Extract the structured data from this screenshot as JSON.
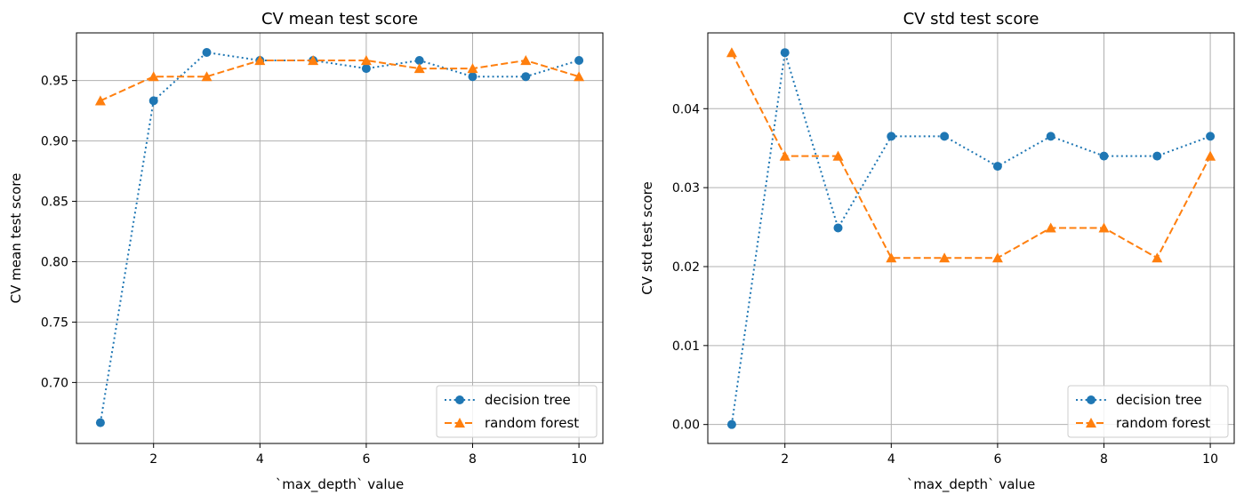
{
  "chart_data": [
    {
      "type": "line",
      "title": "CV mean test score",
      "xlabel": "`max_depth` value",
      "ylabel": "CV mean test score",
      "xlim": [
        0.55,
        10.45
      ],
      "ylim": [
        0.6495,
        0.9895
      ],
      "xticks": [
        2,
        4,
        6,
        8,
        10
      ],
      "yticks": [
        0.7,
        0.75,
        0.8,
        0.85,
        0.9,
        0.95
      ],
      "ytick_labels": [
        "0.70",
        "0.75",
        "0.80",
        "0.85",
        "0.90",
        "0.95"
      ],
      "xtick_labels": [
        "2",
        "4",
        "6",
        "8",
        "10"
      ],
      "grid": true,
      "legend": "lower right",
      "x": [
        1,
        2,
        3,
        4,
        5,
        6,
        7,
        8,
        9,
        10
      ],
      "series": [
        {
          "name": "decision tree",
          "color": "#1f77b4",
          "marker": "circle",
          "linestyle": "dotted",
          "values": [
            0.6667,
            0.9333,
            0.9733,
            0.9667,
            0.9667,
            0.96,
            0.9667,
            0.9533,
            0.9533,
            0.9667
          ]
        },
        {
          "name": "random forest",
          "color": "#ff7f0e",
          "marker": "triangle",
          "linestyle": "dashed",
          "values": [
            0.9333,
            0.9533,
            0.9533,
            0.9667,
            0.9667,
            0.9667,
            0.96,
            0.96,
            0.9667,
            0.9533
          ]
        }
      ]
    },
    {
      "type": "line",
      "title": "CV std test score",
      "xlabel": "`max_depth` value",
      "ylabel": "CV std test score",
      "xlim": [
        0.55,
        10.45
      ],
      "ylim": [
        -0.0024,
        0.0496
      ],
      "xticks": [
        2,
        4,
        6,
        8,
        10
      ],
      "yticks": [
        0.0,
        0.01,
        0.02,
        0.03,
        0.04
      ],
      "ytick_labels": [
        "0.00",
        "0.01",
        "0.02",
        "0.03",
        "0.04"
      ],
      "xtick_labels": [
        "2",
        "4",
        "6",
        "8",
        "10"
      ],
      "grid": true,
      "legend": "lower right",
      "x": [
        1,
        2,
        3,
        4,
        5,
        6,
        7,
        8,
        9,
        10
      ],
      "series": [
        {
          "name": "decision tree",
          "color": "#1f77b4",
          "marker": "circle",
          "linestyle": "dotted",
          "values": [
            0.0,
            0.0471,
            0.0249,
            0.0365,
            0.0365,
            0.0327,
            0.0365,
            0.034,
            0.034,
            0.0365
          ]
        },
        {
          "name": "random forest",
          "color": "#ff7f0e",
          "marker": "triangle",
          "linestyle": "dashed",
          "values": [
            0.0471,
            0.034,
            0.034,
            0.0211,
            0.0211,
            0.0211,
            0.0249,
            0.0249,
            0.0211,
            0.034
          ]
        }
      ]
    }
  ]
}
